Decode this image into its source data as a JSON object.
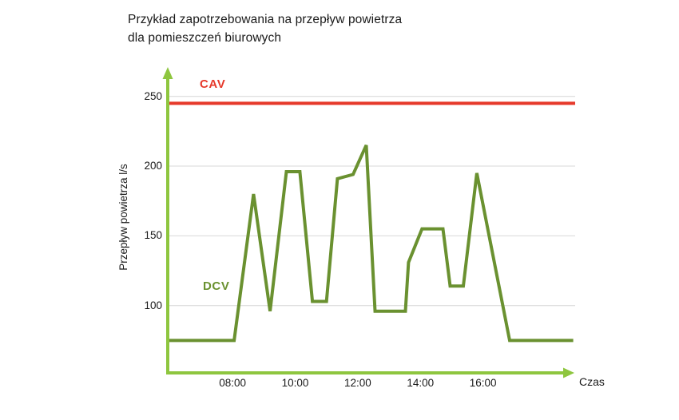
{
  "header": {
    "title_line1": "Przykład zapotrzebowania na przepływ powietrza",
    "title_line2": "dla pomieszczeń biurowych"
  },
  "chart_data": {
    "type": "line",
    "title": "Przykład zapotrzebowania na przepływ powietrza dla pomieszczeń biurowych",
    "xlabel": "Czas",
    "ylabel": "Przepływ powietrza l/s",
    "x_unit": "time of day (decimal hours)",
    "y_unit": "l/s",
    "xlim": [
      5.93,
      18.88
    ],
    "ylim": [
      51,
      270
    ],
    "grid": "horizontal only",
    "legend": "inline labels on chart",
    "y_ticks": [
      {
        "v": 100,
        "label": "100"
      },
      {
        "v": 150,
        "label": "150"
      },
      {
        "v": 200,
        "label": "200"
      },
      {
        "v": 250,
        "label": "250"
      }
    ],
    "x_ticks": [
      {
        "v": 8,
        "label": "08:00"
      },
      {
        "v": 10,
        "label": "10:00"
      },
      {
        "v": 12,
        "label": "12:00"
      },
      {
        "v": 14,
        "label": "14:00"
      },
      {
        "v": 16,
        "label": "16:00"
      }
    ],
    "series": [
      {
        "name": "CAV",
        "kind": "constant-line",
        "value": 245,
        "color": "#e6392b"
      },
      {
        "name": "DCV",
        "kind": "polyline",
        "color": "#6a9130",
        "points": [
          [
            5.93,
            75
          ],
          [
            8.05,
            75
          ],
          [
            8.67,
            180
          ],
          [
            9.2,
            96
          ],
          [
            9.72,
            196
          ],
          [
            10.15,
            196
          ],
          [
            10.55,
            103
          ],
          [
            11.0,
            103
          ],
          [
            11.35,
            191
          ],
          [
            11.85,
            194
          ],
          [
            12.27,
            215
          ],
          [
            12.55,
            96
          ],
          [
            13.52,
            96
          ],
          [
            13.62,
            131
          ],
          [
            14.05,
            155
          ],
          [
            14.72,
            155
          ],
          [
            14.95,
            114
          ],
          [
            15.37,
            114
          ],
          [
            15.8,
            195
          ],
          [
            16.85,
            75
          ],
          [
            18.88,
            75
          ]
        ]
      }
    ],
    "colors": {
      "axis": "#8ec63f",
      "grid": "#e0e0e0",
      "text": "#1a1a1a",
      "cav": "#e6392b",
      "dcv": "#6a9130"
    }
  }
}
